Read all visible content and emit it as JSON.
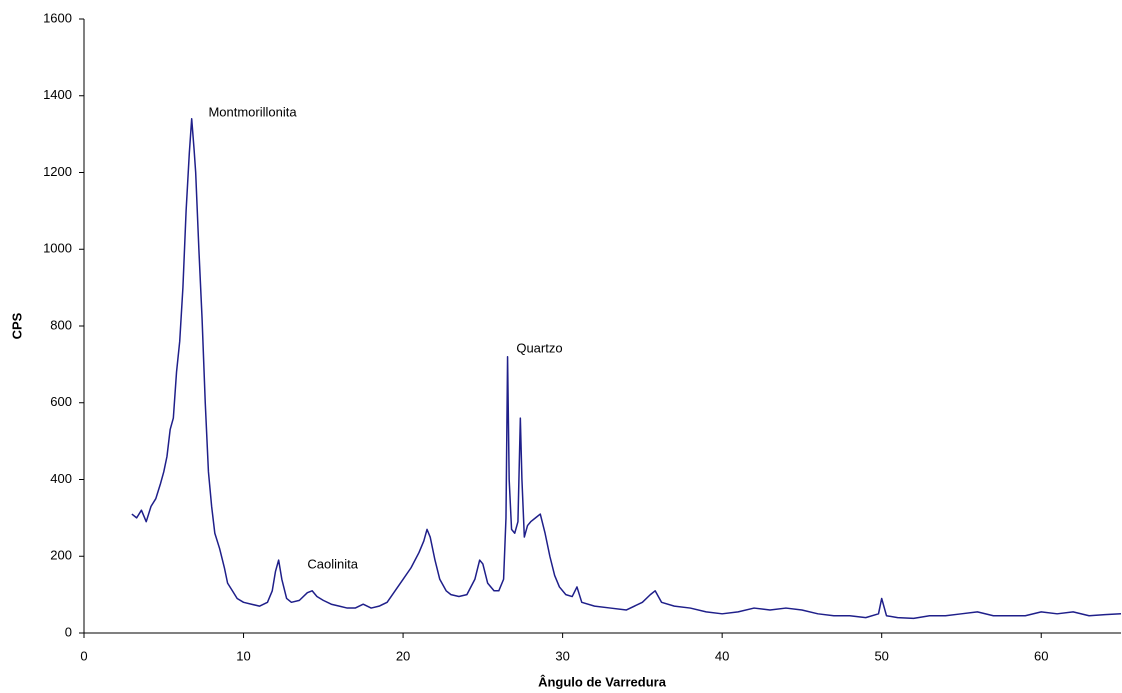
{
  "chart_data": {
    "type": "line",
    "x_label": "Ângulo de Varredura",
    "y_label": "CPS",
    "x": [
      3.0,
      3.3,
      3.6,
      3.9,
      4.2,
      4.5,
      4.8,
      5.0,
      5.2,
      5.4,
      5.6,
      5.8,
      6.0,
      6.2,
      6.4,
      6.6,
      6.75,
      6.9,
      7.0,
      7.2,
      7.4,
      7.6,
      7.8,
      8.0,
      8.2,
      8.5,
      8.8,
      9.0,
      9.3,
      9.6,
      10.0,
      10.5,
      11.0,
      11.5,
      11.8,
      12.0,
      12.2,
      12.4,
      12.7,
      13.0,
      13.5,
      14.0,
      14.3,
      14.6,
      15.0,
      15.5,
      16.0,
      16.5,
      17.0,
      17.5,
      18.0,
      18.5,
      19.0,
      19.5,
      20.0,
      20.5,
      21.0,
      21.3,
      21.5,
      21.7,
      22.0,
      22.3,
      22.7,
      23.0,
      23.5,
      24.0,
      24.5,
      24.8,
      25.0,
      25.3,
      25.7,
      26.0,
      26.3,
      26.45,
      26.55,
      26.65,
      26.8,
      27.0,
      27.2,
      27.35,
      27.45,
      27.6,
      27.8,
      28.0,
      28.3,
      28.6,
      28.9,
      29.2,
      29.5,
      29.8,
      30.2,
      30.6,
      30.9,
      31.2,
      32.0,
      33.0,
      34.0,
      35.0,
      35.5,
      35.8,
      36.2,
      37.0,
      38.0,
      39.0,
      40.0,
      41.0,
      42.0,
      43.0,
      44.0,
      45.0,
      46.0,
      47.0,
      48.0,
      49.0,
      49.8,
      50.0,
      50.3,
      51.0,
      52.0,
      53.0,
      54.0,
      55.0,
      56.0,
      57.0,
      58.0,
      59.0,
      60.0,
      61.0,
      62.0,
      63.0,
      64.0,
      65.0
    ],
    "values": [
      310,
      300,
      320,
      290,
      330,
      350,
      390,
      420,
      460,
      530,
      560,
      680,
      760,
      900,
      1100,
      1250,
      1340,
      1260,
      1200,
      1000,
      820,
      600,
      420,
      330,
      260,
      220,
      170,
      130,
      110,
      90,
      80,
      75,
      70,
      80,
      110,
      160,
      190,
      140,
      90,
      80,
      85,
      105,
      110,
      95,
      85,
      75,
      70,
      65,
      65,
      75,
      65,
      70,
      80,
      110,
      140,
      170,
      210,
      240,
      270,
      250,
      190,
      140,
      110,
      100,
      95,
      100,
      140,
      190,
      180,
      130,
      110,
      110,
      140,
      300,
      720,
      400,
      270,
      260,
      290,
      560,
      400,
      250,
      280,
      290,
      300,
      310,
      260,
      200,
      150,
      120,
      100,
      95,
      120,
      80,
      70,
      65,
      60,
      80,
      100,
      110,
      80,
      70,
      65,
      55,
      50,
      55,
      65,
      60,
      65,
      60,
      50,
      45,
      45,
      40,
      50,
      90,
      45,
      40,
      38,
      45,
      45,
      50,
      55,
      45,
      45,
      45,
      55,
      50,
      55,
      45,
      48,
      50
    ],
    "color": "#1f1f8a",
    "xlim": [
      0,
      65
    ],
    "xticks": [
      0,
      10,
      20,
      30,
      40,
      50,
      60
    ],
    "ylim": [
      0,
      1600
    ],
    "yticks": [
      0,
      200,
      400,
      600,
      800,
      1000,
      1200,
      1400,
      1600
    ],
    "grid": false,
    "annotations": [
      {
        "text": "Montmorillonita",
        "x": 7.8,
        "y": 1355
      },
      {
        "text": "Caolinita",
        "x": 14.0,
        "y": 177
      },
      {
        "text": "Quartzo",
        "x": 27.1,
        "y": 740
      }
    ]
  }
}
